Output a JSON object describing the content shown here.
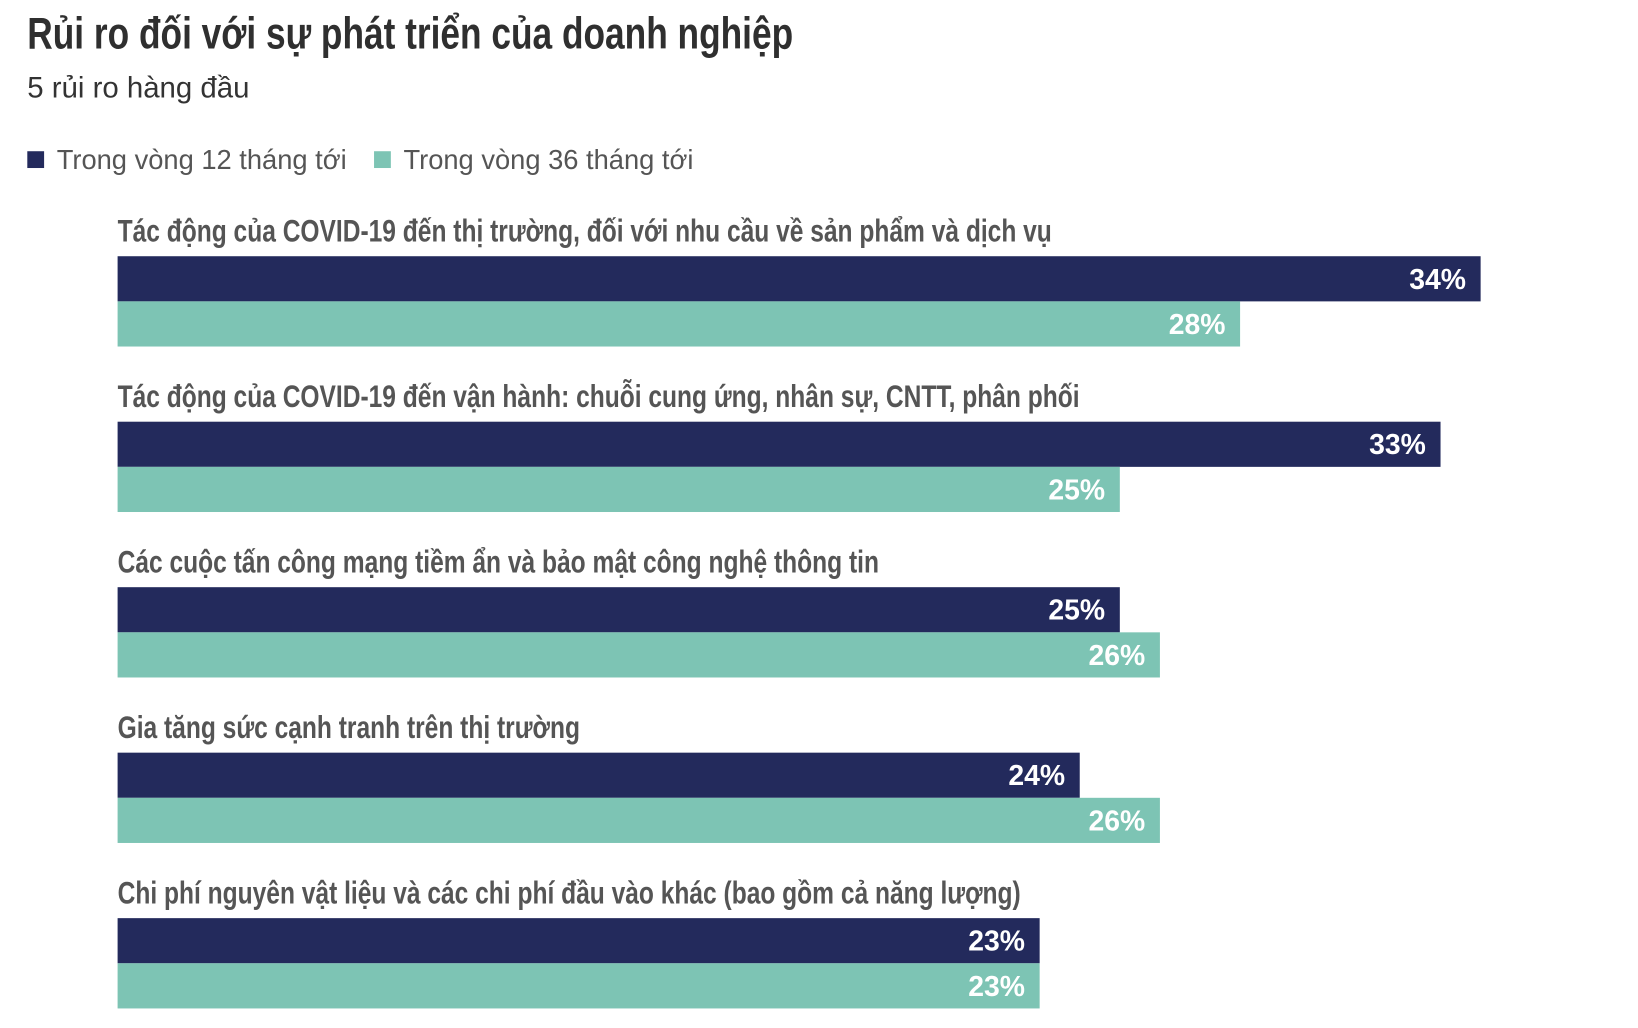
{
  "chart_data": {
    "type": "hbar",
    "title": "Rủi ro đối với sự phát triển của doanh nghiệp",
    "subtitle": "5 rủi ro hàng đầu",
    "categories": [
      "Tác động của COVID-19 đến thị trường, đối với nhu cầu về sản phẩm và dịch vụ",
      "Tác động của COVID-19 đến vận hành: chuỗi cung ứng, nhân sự, CNTT, phân phối",
      "Các cuộc tấn công mạng tiềm ẩn và bảo mật công nghệ thông tin",
      "Gia tăng sức cạnh tranh trên thị trường",
      "Chi phí nguyên vật liệu và các chi phí đầu vào khác (bao gồm cả năng lượng)"
    ],
    "series": [
      {
        "name": "Trong vòng 12 tháng tới",
        "color": "#232a5c",
        "values": [
          34,
          33,
          25,
          24,
          23
        ],
        "value_labels": [
          "34%",
          "33%",
          "25%",
          "24%",
          "23%"
        ]
      },
      {
        "name": "Trong vòng 36 tháng tới",
        "color": "#7dc4b4",
        "values": [
          28,
          25,
          26,
          26,
          23
        ],
        "value_labels": [
          "28%",
          "25%",
          "26%",
          "26%",
          "23%"
        ]
      }
    ],
    "legend": "top-left"
  }
}
